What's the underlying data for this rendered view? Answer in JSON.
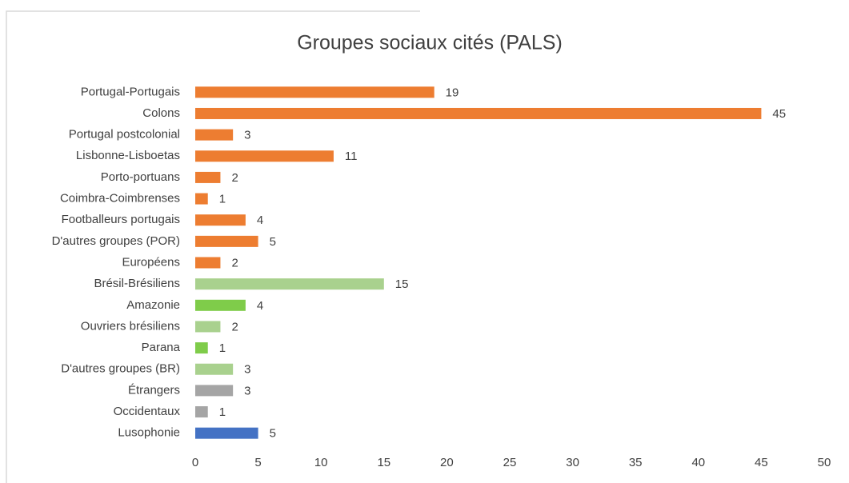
{
  "chart_data": {
    "type": "barh",
    "title": "Groupes sociaux cités (PALS)",
    "categories": [
      "Portugal-Portugais",
      "Colons",
      "Portugal postcolonial",
      "Lisbonne-Lisboetas",
      "Porto-portuans",
      "Coimbra-Coimbrenses",
      "Footballeurs portugais",
      "D'autres groupes (POR)",
      "Européens",
      "Brésil-Brésiliens",
      "Amazonie",
      "Ouvriers brésiliens",
      "Parana",
      "D'autres groupes (BR)",
      "Étrangers",
      "Occidentaux",
      "Lusophonie"
    ],
    "values": [
      19,
      45,
      3,
      11,
      2,
      1,
      4,
      5,
      2,
      15,
      4,
      2,
      1,
      3,
      3,
      1,
      5
    ],
    "colors": [
      "#ed7d31",
      "#ed7d31",
      "#ed7d31",
      "#ed7d31",
      "#ed7d31",
      "#ed7d31",
      "#ed7d31",
      "#ed7d31",
      "#ed7d31",
      "#a9d18e",
      "#7fcc4a",
      "#a9d18e",
      "#7fcc4a",
      "#a9d18e",
      "#a5a5a5",
      "#a5a5a5",
      "#4472c4"
    ],
    "xlim": [
      0,
      50
    ],
    "xticks": [
      0,
      5,
      10,
      15,
      20,
      25,
      30,
      35,
      40,
      45,
      50
    ],
    "grid": false
  }
}
